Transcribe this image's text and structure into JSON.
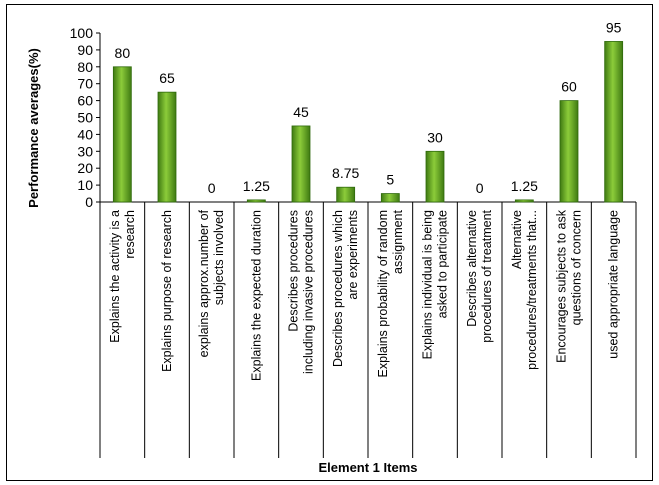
{
  "chart_data": {
    "type": "bar",
    "title": "",
    "xlabel": "Element 1 Items",
    "ylabel": "Performance averages(%)",
    "ylim": [
      0,
      100
    ],
    "yticks": [
      0,
      10,
      20,
      30,
      40,
      50,
      60,
      70,
      80,
      90,
      100
    ],
    "grid": false,
    "legend": "none",
    "bar_color": "#5a9a1e",
    "categories": [
      [
        "Explains the activity is a",
        "research"
      ],
      [
        "Explains purpose of research"
      ],
      [
        "explains approx.number of",
        "subjects involved"
      ],
      [
        "Explains the expected duration"
      ],
      [
        "Describes procedures",
        "including invasive procedures"
      ],
      [
        "Describes procedures which",
        "are experiments"
      ],
      [
        "Explains probability of random",
        "assignment"
      ],
      [
        "Explains individual is being",
        "asked to participate"
      ],
      [
        "Describes alternative",
        "procedures of treatment"
      ],
      [
        "Alternative",
        "procedures/treatments that..."
      ],
      [
        "Encourages subjects to ask",
        "questions of concern"
      ],
      [
        "used appropriate language"
      ]
    ],
    "values": [
      80,
      65,
      0,
      1.25,
      45,
      8.75,
      5,
      30,
      0,
      1.25,
      60,
      95
    ],
    "value_labels": [
      "80",
      "65",
      "0",
      "1.25",
      "45",
      "8.75",
      "5",
      "30",
      "0",
      "1.25",
      "60",
      "95"
    ]
  }
}
